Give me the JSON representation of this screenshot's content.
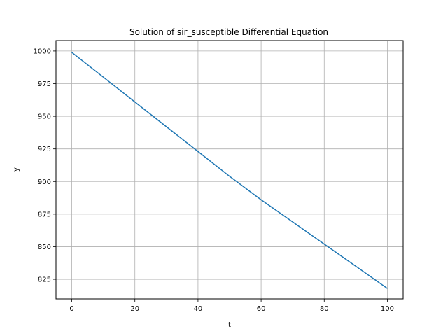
{
  "chart_data": {
    "type": "line",
    "title": "Solution of sir_susceptible Differential Equation",
    "xlabel": "t",
    "ylabel": "y",
    "xlim": [
      -5,
      105
    ],
    "ylim": [
      810,
      1008
    ],
    "xticks": [
      0,
      20,
      40,
      60,
      80,
      100
    ],
    "yticks": [
      825,
      850,
      875,
      900,
      925,
      950,
      975,
      1000
    ],
    "grid": true,
    "series": [
      {
        "color": "#1f77b4",
        "x": [
          0,
          10,
          20,
          30,
          40,
          50,
          60,
          70,
          80,
          90,
          100
        ],
        "y": [
          999,
          980,
          961,
          942,
          923,
          904,
          886,
          869,
          852,
          835,
          818
        ]
      }
    ]
  }
}
